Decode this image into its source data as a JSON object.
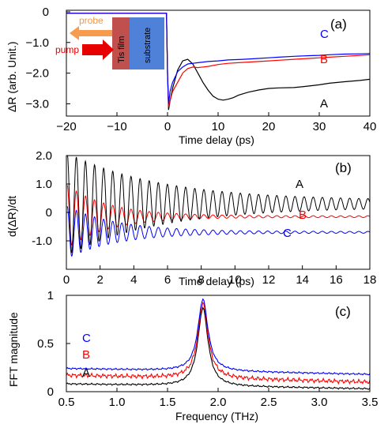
{
  "chart_data": [
    {
      "type": "line",
      "panel_label": "(a)",
      "xlabel": "Time delay (ps)",
      "ylabel": "ΔR (arb. Unit.)",
      "xlim": [
        -20,
        40
      ],
      "ylim": [
        -3.4,
        0.05
      ],
      "x_ticks": [
        "−20",
        "−10",
        "0",
        "10",
        "20",
        "30",
        "40"
      ],
      "y_ticks": [
        "0",
        "−1.0",
        "−2.0",
        "−3.0"
      ],
      "series": [
        {
          "name": "A",
          "color": "#000000",
          "x": [
            -20,
            -0.2,
            0,
            0.2,
            0.5,
            1,
            2,
            3,
            4,
            5,
            6,
            7,
            8,
            9,
            10,
            11,
            12,
            13,
            14,
            16,
            18,
            20,
            22,
            25,
            28,
            30,
            32,
            35,
            38,
            40
          ],
          "y": [
            -0.05,
            -0.05,
            -2.0,
            -3.2,
            -2.9,
            -2.5,
            -1.9,
            -1.6,
            -1.55,
            -1.7,
            -2.0,
            -2.3,
            -2.55,
            -2.75,
            -2.85,
            -2.88,
            -2.85,
            -2.8,
            -2.72,
            -2.62,
            -2.55,
            -2.5,
            -2.48,
            -2.47,
            -2.42,
            -2.38,
            -2.33,
            -2.28,
            -2.24,
            -2.2
          ]
        },
        {
          "name": "B",
          "color": "#ff0000",
          "x": [
            -20,
            -0.2,
            0,
            0.2,
            0.5,
            1,
            2,
            3,
            4,
            5,
            6,
            8,
            10,
            12,
            15,
            18,
            20,
            22,
            25,
            28,
            30,
            32,
            35,
            38,
            40
          ],
          "y": [
            -0.05,
            -0.05,
            -2.0,
            -3.1,
            -2.9,
            -2.6,
            -2.3,
            -2.0,
            -1.85,
            -1.8,
            -1.82,
            -1.78,
            -1.72,
            -1.68,
            -1.65,
            -1.62,
            -1.6,
            -1.58,
            -1.55,
            -1.52,
            -1.5,
            -1.48,
            -1.45,
            -1.42,
            -1.4
          ]
        },
        {
          "name": "C",
          "color": "#0000ff",
          "x": [
            -20,
            -0.2,
            0,
            0.2,
            0.5,
            1,
            2,
            3,
            4,
            5,
            6,
            8,
            10,
            12,
            15,
            18,
            20,
            22,
            25,
            28,
            30,
            32,
            35,
            38,
            40
          ],
          "y": [
            -0.05,
            -0.05,
            -2.0,
            -3.0,
            -2.6,
            -2.3,
            -1.95,
            -1.8,
            -1.7,
            -1.68,
            -1.66,
            -1.62,
            -1.6,
            -1.57,
            -1.55,
            -1.52,
            -1.5,
            -1.48,
            -1.45,
            -1.43,
            -1.42,
            -1.4,
            -1.38,
            -1.37,
            -1.36
          ]
        }
      ],
      "inset": {
        "probe_label": "probe",
        "pump_label": "pump",
        "film_label": "Tis film",
        "substrate_label": "substrate"
      }
    },
    {
      "type": "line",
      "panel_label": "(b)",
      "xlabel": "Time delay (ps)",
      "ylabel": "d(ΔR)/dt",
      "xlim": [
        0,
        18
      ],
      "ylim": [
        -2.0,
        2.0
      ],
      "x_ticks": [
        "0",
        "2",
        "4",
        "6",
        "8",
        "10",
        "12",
        "14",
        "16",
        "18"
      ],
      "y_ticks": [
        "2.0",
        "1.0",
        "0",
        "-1.0"
      ],
      "oscillation_freq_thz": 1.85,
      "series": [
        {
          "name": "A",
          "color": "#000000",
          "offset": 0.3,
          "amp0": 1.7,
          "decay_ps": 5.5
        },
        {
          "name": "B",
          "color": "#ff0000",
          "offset": -0.15,
          "amp0": 1.1,
          "decay_ps": 2.5
        },
        {
          "name": "C",
          "color": "#0000ff",
          "offset": -0.7,
          "amp0": 0.9,
          "decay_ps": 3.0
        }
      ]
    },
    {
      "type": "line",
      "panel_label": "(c)",
      "xlabel": "Frequency (THz)",
      "ylabel": "FFT magnitude",
      "xlim": [
        0.5,
        3.5
      ],
      "ylim": [
        0,
        1.0
      ],
      "x_ticks": [
        "0.5",
        "1.0",
        "1.5",
        "2.0",
        "2.5",
        "3.0",
        "3.5"
      ],
      "y_ticks": [
        "1",
        "0.5",
        "0"
      ],
      "peak_thz": 1.85,
      "series": [
        {
          "name": "C",
          "color": "#0000ff",
          "peak": 0.96,
          "baseline_start": 0.24,
          "baseline_end": 0.18
        },
        {
          "name": "B",
          "color": "#ff0000",
          "peak": 0.92,
          "baseline_start": 0.17,
          "baseline_end": 0.1
        },
        {
          "name": "A",
          "color": "#000000",
          "peak": 0.87,
          "baseline_start": 0.08,
          "baseline_end": 0.03
        }
      ]
    }
  ]
}
